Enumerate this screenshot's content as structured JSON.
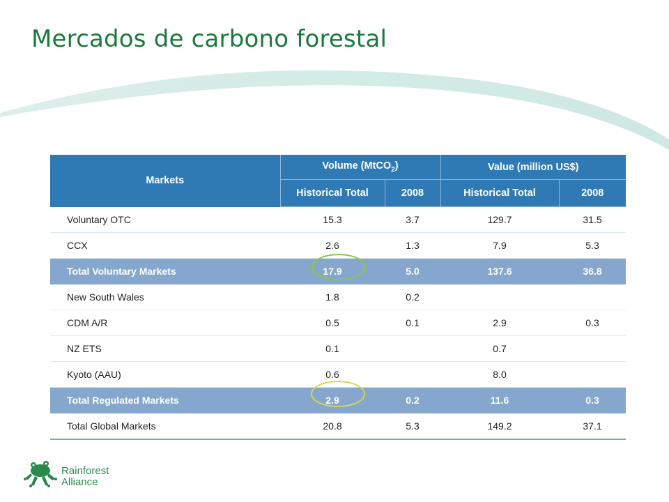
{
  "slide": {
    "title": "Mercados de carbono forestal"
  },
  "table": {
    "header": {
      "markets": "Markets",
      "volume": "Volume (MtCO",
      "volume_sub": "2",
      "volume_close": ")",
      "value": "Value (million US$)",
      "historical_total": "Historical Total",
      "year": "2008"
    },
    "rows": [
      {
        "market": "Voluntary OTC",
        "vol_hist": "15.3",
        "vol_2008": "3.7",
        "val_hist": "129.7",
        "val_2008": "31.5"
      },
      {
        "market": "CCX",
        "vol_hist": "2.6",
        "vol_2008": "1.3",
        "val_hist": "7.9",
        "val_2008": "5.3"
      },
      {
        "market": "Total Voluntary Markets",
        "vol_hist": "17.9",
        "vol_2008": "5.0",
        "val_hist": "137.6",
        "val_2008": "36.8"
      },
      {
        "market": "New South Wales",
        "vol_hist": "1.8",
        "vol_2008": "0.2",
        "val_hist": "",
        "val_2008": ""
      },
      {
        "market": "CDM A/R",
        "vol_hist": "0.5",
        "vol_2008": "0.1",
        "val_hist": "2.9",
        "val_2008": "0.3"
      },
      {
        "market": "NZ ETS",
        "vol_hist": "0.1",
        "vol_2008": "",
        "val_hist": "0.7",
        "val_2008": ""
      },
      {
        "market": "Kyoto (AAU)",
        "vol_hist": "0.6",
        "vol_2008": "",
        "val_hist": "8.0",
        "val_2008": ""
      },
      {
        "market": "Total Regulated Markets",
        "vol_hist": "2.9",
        "vol_2008": "0.2",
        "val_hist": "11.6",
        "val_2008": "0.3"
      },
      {
        "market": "Total Global Markets",
        "vol_hist": "20.8",
        "vol_2008": "5.3",
        "val_hist": "149.2",
        "val_2008": "37.1"
      }
    ]
  },
  "logo": {
    "line1": "Rainforest",
    "line2": "Alliance"
  },
  "colors": {
    "title_green": "#1b7a3c",
    "header_blue": "#2f7ab5",
    "total_row_blue": "#86a7cd",
    "highlight_circle_green": "#8cc63e",
    "highlight_circle_yellow": "#d9d84a"
  }
}
